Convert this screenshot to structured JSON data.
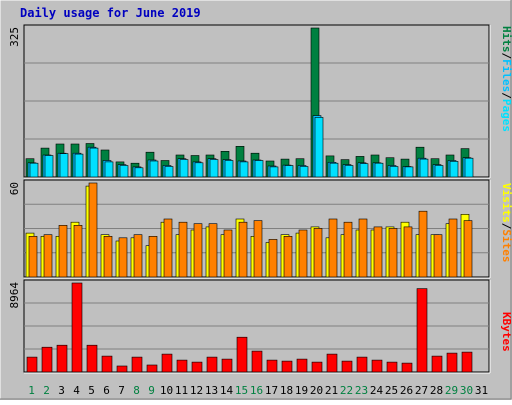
{
  "title": "Daily usage for June 2019",
  "colors": {
    "page_bg": "#C0C0C0",
    "plot_bg": "#C0C0C0",
    "title": "#0000C0",
    "hits": "#008040",
    "files": "#00C0FF",
    "pages": "#00E0FF",
    "visits": "#FFFF00",
    "sites": "#FF8000",
    "kbytes": "#FF0000",
    "axis_label": "#000000",
    "weekend_label": "#008040",
    "slash": "#000000"
  },
  "panels": {
    "top": {
      "max_label": "325",
      "labels": [
        "Pages",
        "Files",
        "Hits"
      ]
    },
    "middle": {
      "max_label": "60",
      "labels": [
        "Sites",
        "Visits"
      ]
    },
    "bottom": {
      "max_label": "8964",
      "labels": [
        "KBytes"
      ]
    }
  },
  "chart_data": [
    {
      "type": "bar",
      "title": "Daily usage for June 2019",
      "panel": "hits-files-pages",
      "categories": [
        "1",
        "2",
        "3",
        "4",
        "5",
        "6",
        "7",
        "8",
        "9",
        "10",
        "11",
        "12",
        "13",
        "14",
        "15",
        "16",
        "17",
        "18",
        "19",
        "20",
        "21",
        "22",
        "23",
        "24",
        "25",
        "26",
        "27",
        "28",
        "29",
        "30",
        "31"
      ],
      "ylim": [
        0,
        325
      ],
      "series": [
        {
          "name": "Hits",
          "values": [
            40,
            63,
            72,
            72,
            73,
            59,
            33,
            30,
            54,
            36,
            48,
            47,
            48,
            56,
            67,
            52,
            35,
            39,
            40,
            325,
            46,
            38,
            45,
            48,
            42,
            39,
            65,
            40,
            48,
            62,
            0
          ]
        },
        {
          "name": "Files",
          "values": [
            31,
            48,
            52,
            52,
            65,
            36,
            27,
            22,
            37,
            25,
            40,
            33,
            40,
            38,
            35,
            37,
            24,
            26,
            25,
            134,
            32,
            27,
            31,
            31,
            25,
            23,
            41,
            27,
            36,
            42,
            0
          ]
        },
        {
          "name": "Pages",
          "values": [
            30,
            47,
            51,
            50,
            63,
            33,
            25,
            20,
            35,
            23,
            38,
            31,
            38,
            36,
            33,
            36,
            22,
            25,
            23,
            130,
            30,
            25,
            29,
            30,
            23,
            22,
            39,
            25,
            34,
            41,
            0
          ]
        }
      ]
    },
    {
      "type": "bar",
      "panel": "visits-sites",
      "categories": [
        "1",
        "2",
        "3",
        "4",
        "5",
        "6",
        "7",
        "8",
        "9",
        "10",
        "11",
        "12",
        "13",
        "14",
        "15",
        "16",
        "17",
        "18",
        "19",
        "20",
        "21",
        "22",
        "23",
        "24",
        "25",
        "26",
        "27",
        "28",
        "29",
        "30",
        "31"
      ],
      "ylim": [
        0,
        60
      ],
      "series": [
        {
          "name": "Visits",
          "values": [
            28,
            26,
            26,
            35,
            58,
            27,
            23,
            25,
            20,
            35,
            27,
            30,
            32,
            27,
            37,
            26,
            22,
            27,
            28,
            32,
            25,
            27,
            30,
            30,
            32,
            35,
            27,
            27,
            34,
            40,
            0
          ]
        },
        {
          "name": "Sites",
          "values": [
            26,
            27,
            33,
            33,
            60,
            26,
            25,
            27,
            26,
            37,
            35,
            34,
            34,
            30,
            35,
            36,
            24,
            26,
            30,
            31,
            37,
            35,
            37,
            32,
            31,
            32,
            42,
            27,
            37,
            36,
            0
          ]
        }
      ]
    },
    {
      "type": "bar",
      "panel": "kbytes",
      "categories": [
        "1",
        "2",
        "3",
        "4",
        "5",
        "6",
        "7",
        "8",
        "9",
        "10",
        "11",
        "12",
        "13",
        "14",
        "15",
        "16",
        "17",
        "18",
        "19",
        "20",
        "21",
        "22",
        "23",
        "24",
        "25",
        "26",
        "27",
        "28",
        "29",
        "30",
        "31"
      ],
      "ylim": [
        0,
        8964
      ],
      "series": [
        {
          "name": "KBytes",
          "values": [
            1500,
            2500,
            2700,
            8964,
            2700,
            1600,
            600,
            1500,
            700,
            1800,
            1200,
            1000,
            1500,
            1300,
            3500,
            2100,
            1200,
            1100,
            1300,
            1000,
            1800,
            1100,
            1500,
            1200,
            1000,
            900,
            8400,
            1600,
            1900,
            2000,
            0
          ]
        }
      ]
    }
  ],
  "weekend_days": [
    1,
    2,
    8,
    9,
    15,
    16,
    22,
    23,
    29,
    30
  ]
}
